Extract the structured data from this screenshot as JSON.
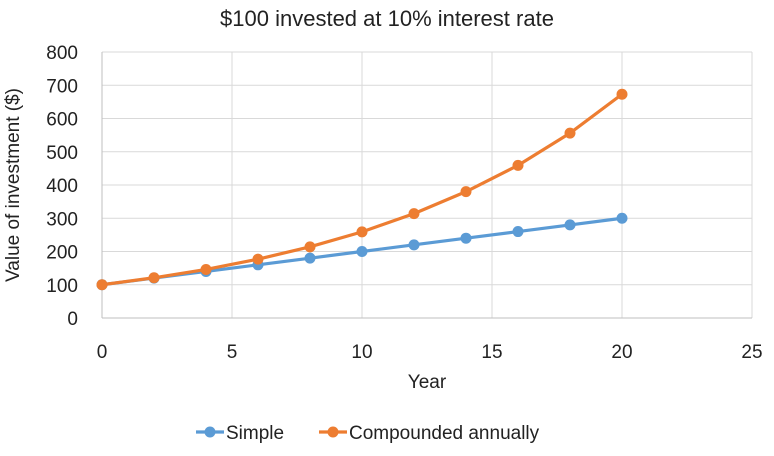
{
  "chart_data": {
    "type": "line",
    "title": "$100 invested at 10% interest rate",
    "xlabel": "Year",
    "ylabel": "Value of investment ($)",
    "xlim": [
      0,
      25
    ],
    "ylim": [
      0,
      800
    ],
    "xticks": [
      0,
      5,
      10,
      15,
      20,
      25
    ],
    "yticks": [
      0,
      100,
      200,
      300,
      400,
      500,
      600,
      700,
      800
    ],
    "grid": true,
    "legend_position": "bottom",
    "x": [
      0,
      2,
      4,
      6,
      8,
      10,
      12,
      14,
      16,
      18,
      20
    ],
    "series": [
      {
        "name": "Simple",
        "color": "#5b9bd5",
        "values": [
          100,
          120,
          140,
          160,
          180,
          200,
          220,
          240,
          260,
          280,
          300
        ]
      },
      {
        "name": "Compounded annually",
        "color": "#ed7d31",
        "values": [
          100,
          121,
          146,
          177,
          214,
          259,
          314,
          380,
          459,
          556,
          673
        ]
      }
    ]
  }
}
